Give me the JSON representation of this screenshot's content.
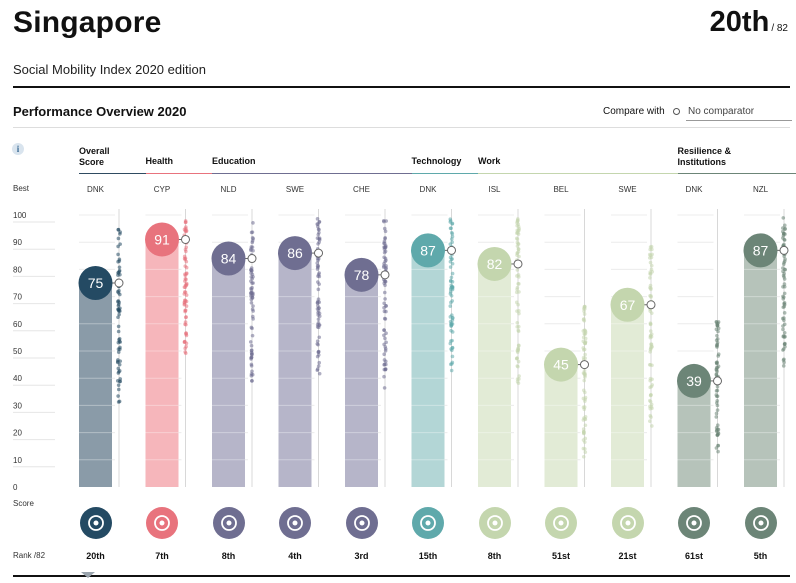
{
  "header": {
    "country": "Singapore",
    "rank": "20th",
    "rank_total": "/ 82",
    "subtitle": "Social Mobility Index 2020 edition"
  },
  "section": {
    "title": "Performance Overview 2020",
    "compare_label": "Compare with",
    "compare_value": "No comparator",
    "info_glyph": "i"
  },
  "labels": {
    "best": "Best",
    "score": "Score",
    "rank": "Rank /82"
  },
  "chart_data": {
    "type": "bar",
    "ylim": [
      0,
      100
    ],
    "yticks": [
      "100",
      "90",
      "80",
      "70",
      "60",
      "50",
      "40",
      "30",
      "20",
      "10",
      "0"
    ],
    "categories": [
      {
        "pillar": "Overall Score",
        "best": "DNK",
        "score": 75,
        "rank": "20th",
        "color": "#244a63",
        "bar": "#8a9ba8",
        "icon": "medal-icon"
      },
      {
        "pillar": "Health",
        "best": "CYP",
        "score": 91,
        "rank": "7th",
        "color": "#e8737d",
        "bar": "#f6b6bb",
        "icon": "health-cross-icon"
      },
      {
        "pillar": "Education",
        "best": "NLD",
        "score": 84,
        "rank": "8th",
        "color": "#6f6e91",
        "bar": "#b6b5c9",
        "icon": "graduation-cap-icon"
      },
      {
        "pillar": "Education",
        "best": "SWE",
        "score": 86,
        "rank": "4th",
        "color": "#6f6e91",
        "bar": "#b6b5c9",
        "icon": "award-ribbon-icon"
      },
      {
        "pillar": "Education",
        "best": "CHE",
        "score": 78,
        "rank": "3rd",
        "color": "#6f6e91",
        "bar": "#b6b5c9",
        "icon": "learning-head-icon"
      },
      {
        "pillar": "Technology",
        "best": "DNK",
        "score": 87,
        "rank": "15th",
        "color": "#5fa9ab",
        "bar": "#b3d6d6",
        "icon": "circuit-icon"
      },
      {
        "pillar": "Work",
        "best": "ISL",
        "score": 82,
        "rank": "8th",
        "color": "#c4d6ae",
        "bar": "#e2ebd6",
        "icon": "wrench-icon"
      },
      {
        "pillar": "Work",
        "best": "BEL",
        "score": 45,
        "rank": "51st",
        "color": "#c4d6ae",
        "bar": "#e2ebd6",
        "icon": "coins-icon"
      },
      {
        "pillar": "Work",
        "best": "SWE",
        "score": 67,
        "rank": "21st",
        "color": "#c4d6ae",
        "bar": "#e2ebd6",
        "icon": "document-icon"
      },
      {
        "pillar": "Resilience & Institutions",
        "best": "DNK",
        "score": 39,
        "rank": "61st",
        "color": "#6c8577",
        "bar": "#b6c3ba",
        "icon": "hands-people-icon"
      },
      {
        "pillar": "Resilience & Institutions",
        "best": "NZL",
        "score": 87,
        "rank": "5th",
        "color": "#6c8577",
        "bar": "#b6c3ba",
        "icon": "institution-icon"
      }
    ],
    "groups": [
      {
        "name": "Overall Score",
        "from": 0,
        "to": 0,
        "line": "#2f4b61"
      },
      {
        "name": "Health",
        "from": 1,
        "to": 1,
        "line": "#e8737d"
      },
      {
        "name": "Education",
        "from": 2,
        "to": 4,
        "line": "#6f6e91"
      },
      {
        "name": "Technology",
        "from": 5,
        "to": 5,
        "line": "#5fa9ab"
      },
      {
        "name": "Work",
        "from": 6,
        "to": 8,
        "line": "#c4d6ae"
      },
      {
        "name": "Resilience & Institutions",
        "from": 9,
        "to": 10,
        "line": "#6c8577"
      }
    ]
  }
}
